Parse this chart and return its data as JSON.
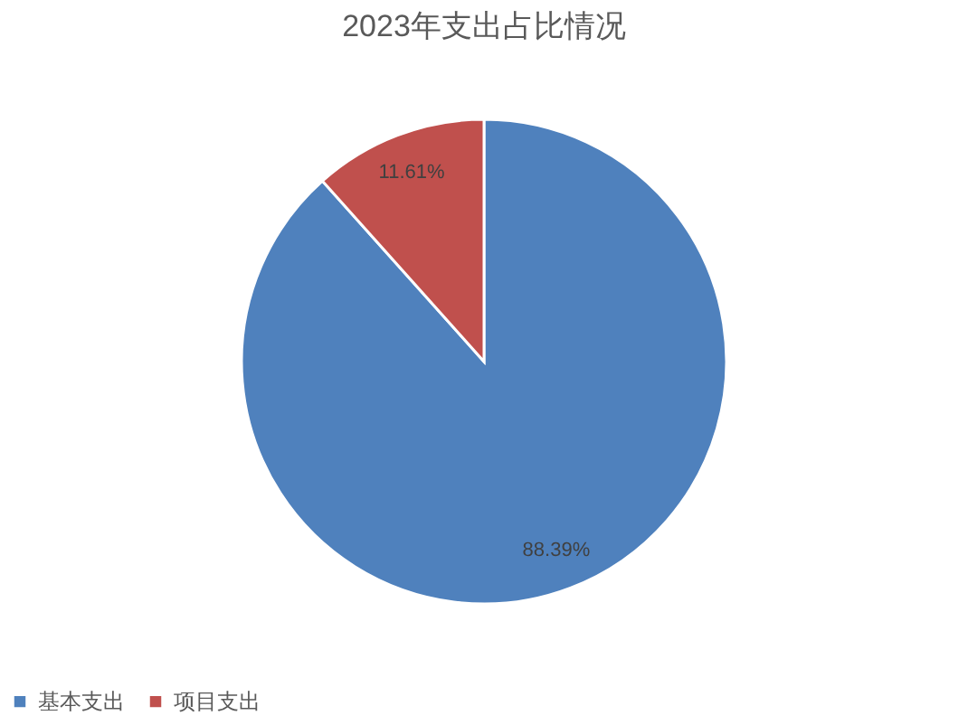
{
  "chart_data": {
    "type": "pie",
    "title": "2023年支出占比情况",
    "categories": [
      "基本支出",
      "项目支出"
    ],
    "values": [
      88.39,
      11.61
    ],
    "colors": [
      "#4f81bd",
      "#c0504d"
    ],
    "value_labels": [
      "88.39%",
      "11.61%"
    ],
    "legend": "bottom"
  }
}
